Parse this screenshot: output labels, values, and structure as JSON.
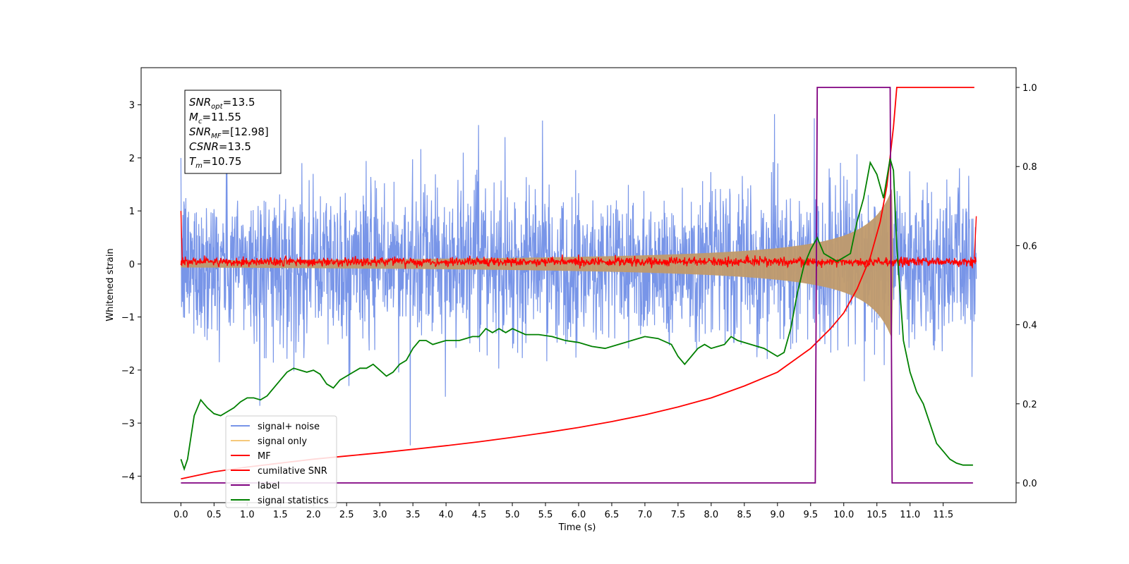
{
  "chart_data": {
    "type": "line",
    "title": "",
    "xlabel": "Time (s)",
    "ylabel": "Whitened strain",
    "xlim": [
      -0.6,
      12.6
    ],
    "ylim": [
      -4.5,
      3.7
    ],
    "y2lim": [
      -0.05,
      1.05
    ],
    "xticks": [
      0.0,
      0.5,
      1.0,
      1.5,
      2.0,
      2.5,
      3.0,
      3.5,
      4.0,
      4.5,
      5.0,
      5.5,
      6.0,
      6.5,
      7.0,
      7.5,
      8.0,
      8.5,
      9.0,
      9.5,
      10.0,
      10.5,
      11.0,
      11.5
    ],
    "xtick_labels": [
      "0.0",
      "0.5",
      "1.0",
      "1.5",
      "2.0",
      "2.5",
      "3.0",
      "3.5",
      "4.0",
      "4.5",
      "5.0",
      "5.5",
      "6.0",
      "6.5",
      "7.0",
      "7.5",
      "8.0",
      "8.5",
      "9.0",
      "9.5",
      "10.0",
      "10.5",
      "11.0",
      "11.5"
    ],
    "yticks": [
      -4,
      -3,
      -2,
      -1,
      0,
      1,
      2,
      3
    ],
    "ytick_labels": [
      "−4",
      "−3",
      "−2",
      "−1",
      "0",
      "1",
      "2",
      "3"
    ],
    "y2ticks": [
      0.0,
      0.2,
      0.4,
      0.6,
      0.8,
      1.0
    ],
    "y2tick_labels": [
      "0.0",
      "0.2",
      "0.4",
      "0.6",
      "0.8",
      "1.0"
    ],
    "grid": false,
    "legend_position": "lower-left",
    "info_box": [
      {
        "base": "SNR",
        "sub": "opt",
        "value": "=13.5"
      },
      {
        "base": "M",
        "sub": "c",
        "value": "=11.55"
      },
      {
        "base": "SNR",
        "sub": "MF",
        "value": "=[12.98]"
      },
      {
        "base": "CSNR",
        "sub": "",
        "value": "=13.5"
      },
      {
        "base": "T",
        "sub": "m",
        "value": "=10.75"
      }
    ],
    "series": [
      {
        "name": "signal+ noise",
        "color": "#7895e8",
        "axis": "left",
        "kind": "noise",
        "amplitude": 1.0,
        "x_range": [
          0.0,
          12.0
        ]
      },
      {
        "name": "signal only",
        "color": "#f5c97a",
        "axis": "left",
        "kind": "chirp",
        "peak_time": 10.75,
        "peak_amplitude": 1.5,
        "x_range": [
          0.0,
          12.0
        ]
      },
      {
        "name": "MF",
        "color": "#ff0000",
        "axis": "left",
        "kind": "noise",
        "amplitude": 0.07,
        "x_range": [
          0.0,
          12.0
        ]
      },
      {
        "name": "cumilative SNR",
        "color": "#ff0000",
        "axis": "right",
        "x": [
          0.0,
          0.5,
          1.0,
          1.5,
          2.0,
          2.5,
          3.0,
          3.5,
          4.0,
          4.5,
          5.0,
          5.5,
          6.0,
          6.5,
          7.0,
          7.5,
          8.0,
          8.5,
          9.0,
          9.5,
          9.8,
          10.0,
          10.2,
          10.4,
          10.55,
          10.65,
          10.75,
          10.8,
          11.0,
          11.5,
          11.97
        ],
        "values": [
          0.01,
          0.028,
          0.04,
          0.05,
          0.06,
          0.068,
          0.076,
          0.085,
          0.094,
          0.104,
          0.115,
          0.127,
          0.14,
          0.155,
          0.172,
          0.192,
          0.215,
          0.245,
          0.28,
          0.34,
          0.39,
          0.43,
          0.49,
          0.57,
          0.66,
          0.75,
          0.9,
          1.0,
          1.0,
          1.0,
          1.0
        ]
      },
      {
        "name": "label",
        "color": "#800080",
        "axis": "right",
        "x": [
          0.0,
          9.57,
          9.6,
          10.7,
          10.73,
          11.95
        ],
        "values": [
          0.0,
          0.0,
          1.0,
          1.0,
          0.0,
          0.0
        ]
      },
      {
        "name": "signal statistics",
        "color": "#008000",
        "axis": "right",
        "x": [
          0.0,
          0.05,
          0.1,
          0.2,
          0.3,
          0.4,
          0.5,
          0.6,
          0.7,
          0.8,
          0.9,
          1.0,
          1.1,
          1.2,
          1.3,
          1.4,
          1.5,
          1.6,
          1.7,
          1.8,
          1.9,
          2.0,
          2.1,
          2.2,
          2.3,
          2.4,
          2.5,
          2.6,
          2.7,
          2.8,
          2.9,
          3.0,
          3.1,
          3.2,
          3.3,
          3.4,
          3.5,
          3.6,
          3.7,
          3.8,
          3.9,
          4.0,
          4.2,
          4.4,
          4.5,
          4.6,
          4.7,
          4.8,
          4.9,
          5.0,
          5.2,
          5.4,
          5.6,
          5.8,
          6.0,
          6.2,
          6.4,
          6.6,
          6.8,
          7.0,
          7.2,
          7.4,
          7.5,
          7.6,
          7.7,
          7.8,
          7.9,
          8.0,
          8.2,
          8.3,
          8.4,
          8.6,
          8.8,
          9.0,
          9.1,
          9.2,
          9.3,
          9.4,
          9.5,
          9.6,
          9.7,
          9.8,
          9.9,
          10.0,
          10.1,
          10.2,
          10.3,
          10.4,
          10.5,
          10.6,
          10.7,
          10.75,
          10.8,
          10.9,
          11.0,
          11.1,
          11.2,
          11.3,
          11.4,
          11.5,
          11.6,
          11.7,
          11.8,
          11.9,
          11.95
        ],
        "values": [
          0.06,
          0.035,
          0.06,
          0.17,
          0.21,
          0.19,
          0.175,
          0.17,
          0.18,
          0.19,
          0.205,
          0.215,
          0.215,
          0.21,
          0.22,
          0.24,
          0.26,
          0.28,
          0.29,
          0.285,
          0.28,
          0.285,
          0.275,
          0.25,
          0.24,
          0.26,
          0.27,
          0.28,
          0.29,
          0.29,
          0.3,
          0.285,
          0.27,
          0.28,
          0.3,
          0.31,
          0.34,
          0.36,
          0.36,
          0.35,
          0.355,
          0.36,
          0.36,
          0.37,
          0.37,
          0.39,
          0.38,
          0.39,
          0.38,
          0.39,
          0.375,
          0.375,
          0.37,
          0.36,
          0.355,
          0.345,
          0.34,
          0.35,
          0.36,
          0.37,
          0.365,
          0.35,
          0.32,
          0.3,
          0.32,
          0.34,
          0.35,
          0.34,
          0.35,
          0.37,
          0.36,
          0.35,
          0.34,
          0.32,
          0.33,
          0.39,
          0.48,
          0.55,
          0.59,
          0.62,
          0.58,
          0.57,
          0.56,
          0.57,
          0.58,
          0.66,
          0.72,
          0.81,
          0.78,
          0.72,
          0.82,
          0.79,
          0.6,
          0.36,
          0.28,
          0.23,
          0.2,
          0.15,
          0.1,
          0.08,
          0.06,
          0.05,
          0.045,
          0.045,
          0.045
        ]
      }
    ]
  }
}
